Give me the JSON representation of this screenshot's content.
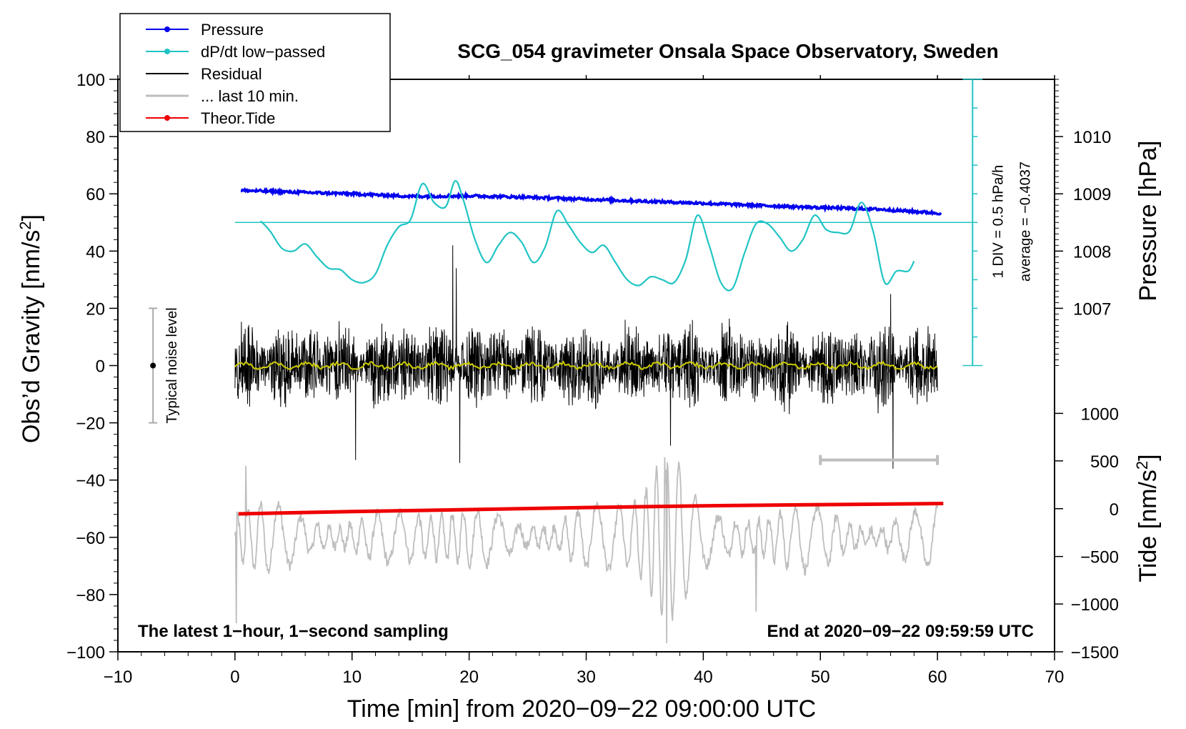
{
  "chart_data": {
    "type": "line",
    "title": "SCG_054 gravimeter Onsala Space Observatory, Sweden",
    "xlabel": "Time [min] from 2020−09−22 09:00:00 UTC",
    "ylabel_left_main": "Obs’d Gravity [nm/s",
    "ylabel_left_sup": "2",
    "ylabel_left_end": "]",
    "ylabel_right_pressure": "Pressure [hPa]",
    "ylabel_right_tide_main": "Tide [nm/s",
    "ylabel_right_tide_sup": "2",
    "ylabel_right_tide_end": "]",
    "xlim": [
      -10,
      70
    ],
    "ylim": [
      -100,
      100
    ],
    "x_ticks": [
      "−10",
      "0",
      "10",
      "20",
      "30",
      "40",
      "50",
      "60",
      "70"
    ],
    "y_ticks": [
      "−100",
      "−80",
      "−60",
      "−40",
      "−20",
      "0",
      "20",
      "40",
      "60",
      "80",
      "100"
    ],
    "pressure_ticks": [
      {
        "label": "1007",
        "gravity": 20
      },
      {
        "label": "1008",
        "gravity": 40
      },
      {
        "label": "1009",
        "gravity": 60
      },
      {
        "label": "1010",
        "gravity": 80
      }
    ],
    "tide_ticks": [
      {
        "label": "−1500",
        "gravity": -100
      },
      {
        "label": "−1000",
        "gravity": -83.3
      },
      {
        "label": "−500",
        "gravity": -66.7
      },
      {
        "label": "0",
        "gravity": -50
      },
      {
        "label": "500",
        "gravity": -33.3
      },
      {
        "label": "1000",
        "gravity": -16.7
      }
    ],
    "dpdt_scale": {
      "div_label": "1 DIV = 0.5 hPa/h",
      "average_label": "average = −0.4037",
      "x": 63,
      "range": [
        0,
        100
      ],
      "divisions": 10,
      "average_level": 50
    },
    "noise_level": {
      "label": "Typical noise level",
      "x": -7,
      "center": 0,
      "range": [
        -20,
        20
      ]
    },
    "last10_marker": {
      "x_range": [
        50,
        60
      ],
      "y": -33
    },
    "annotation_left": "The latest 1−hour, 1−second sampling",
    "annotation_right": "End at 2020−09−22 09:59:59 UTC",
    "legend": [
      {
        "label": "Pressure",
        "color": "#0000ee",
        "marker": true
      },
      {
        "label": "dP/dt low−passed",
        "color": "#20c4c4",
        "marker": true
      },
      {
        "label": "Residual",
        "color": "#000000",
        "marker": false
      },
      {
        "label": "... last 10 min.",
        "color": "#bebebe",
        "marker": false
      },
      {
        "label": "Theor.Tide",
        "color": "#ee0000",
        "marker": true
      }
    ],
    "series": [
      {
        "name": "Pressure",
        "color": "#0000ee",
        "x": [
          0.5,
          5,
          10,
          15,
          20,
          25,
          30,
          35,
          40,
          45,
          50,
          55,
          60.3
        ],
        "y": [
          61.2,
          60.6,
          60.0,
          59.1,
          59.3,
          58.8,
          58.1,
          57.4,
          56.7,
          55.9,
          55.2,
          54.6,
          53.2
        ]
      },
      {
        "name": "dP/dt low-passed",
        "color": "#20c4c4",
        "x": [
          2.2,
          3,
          4,
          5,
          6,
          7,
          8,
          9,
          10,
          11,
          12,
          13,
          14,
          15,
          16,
          17,
          18,
          18.8,
          19.5,
          20.5,
          21.5,
          22.5,
          23.5,
          24.5,
          25.5,
          26.5,
          27.5,
          28.5,
          29.5,
          30.5,
          31.5,
          32.5,
          33.5,
          34.5,
          35.5,
          36.5,
          37.5,
          38.5,
          39.5,
          40.5,
          41.5,
          42.5,
          43.5,
          44.5,
          45.5,
          46.5,
          47.5,
          48.5,
          49.5,
          50.5,
          51.5,
          52.5,
          53.5,
          54.5,
          55.5,
          56.5,
          57.5,
          58
        ],
        "y": [
          50.5,
          47,
          41,
          40,
          42.5,
          38,
          34,
          33.5,
          30,
          29,
          32,
          42,
          48.5,
          51,
          63.5,
          57,
          55.5,
          64.5,
          58,
          44,
          36,
          42,
          46.5,
          43,
          36,
          41.5,
          54,
          49,
          43,
          39.5,
          42,
          36,
          30,
          28,
          31,
          30,
          29,
          37,
          52.5,
          42,
          29,
          27,
          39,
          49.5,
          49.5,
          45,
          40,
          44,
          52.5,
          47.5,
          46.5,
          47,
          57,
          47,
          29,
          33,
          33,
          36.5
        ]
      },
      {
        "name": "Residual",
        "color": "#000000",
        "x_range": [
          0,
          60
        ],
        "typical_amplitude": 15,
        "peaks": [
          {
            "x": 10.3,
            "y": -33
          },
          {
            "x": 18.9,
            "y": 34
          },
          {
            "x": 19.2,
            "y": -34
          },
          {
            "x": 18.6,
            "y": 42
          },
          {
            "x": 37.2,
            "y": -28
          },
          {
            "x": 56.2,
            "y": -36
          },
          {
            "x": 56.0,
            "y": 25
          }
        ]
      },
      {
        "name": "Residual smoothed",
        "color": "#cccc00",
        "x_range": [
          0,
          60
        ],
        "level": 0
      },
      {
        "name": "... last 10 min.",
        "color": "#bebebe",
        "x_range": [
          0,
          60
        ],
        "baseline": -60,
        "typical_amplitude": 12,
        "peaks": [
          {
            "x": 0.9,
            "y": -35
          },
          {
            "x": 0.1,
            "y": -90
          },
          {
            "x": 36.7,
            "y": -32
          },
          {
            "x": 36.9,
            "y": -97
          },
          {
            "x": 44.5,
            "y": -86
          }
        ]
      },
      {
        "name": "Theor.Tide",
        "color": "#ee0000",
        "x": [
          0.3,
          10,
          20,
          30,
          40,
          50,
          60.5
        ],
        "y": [
          -51.8,
          -51.0,
          -50.3,
          -49.6,
          -49.0,
          -48.6,
          -48.2
        ]
      }
    ]
  }
}
